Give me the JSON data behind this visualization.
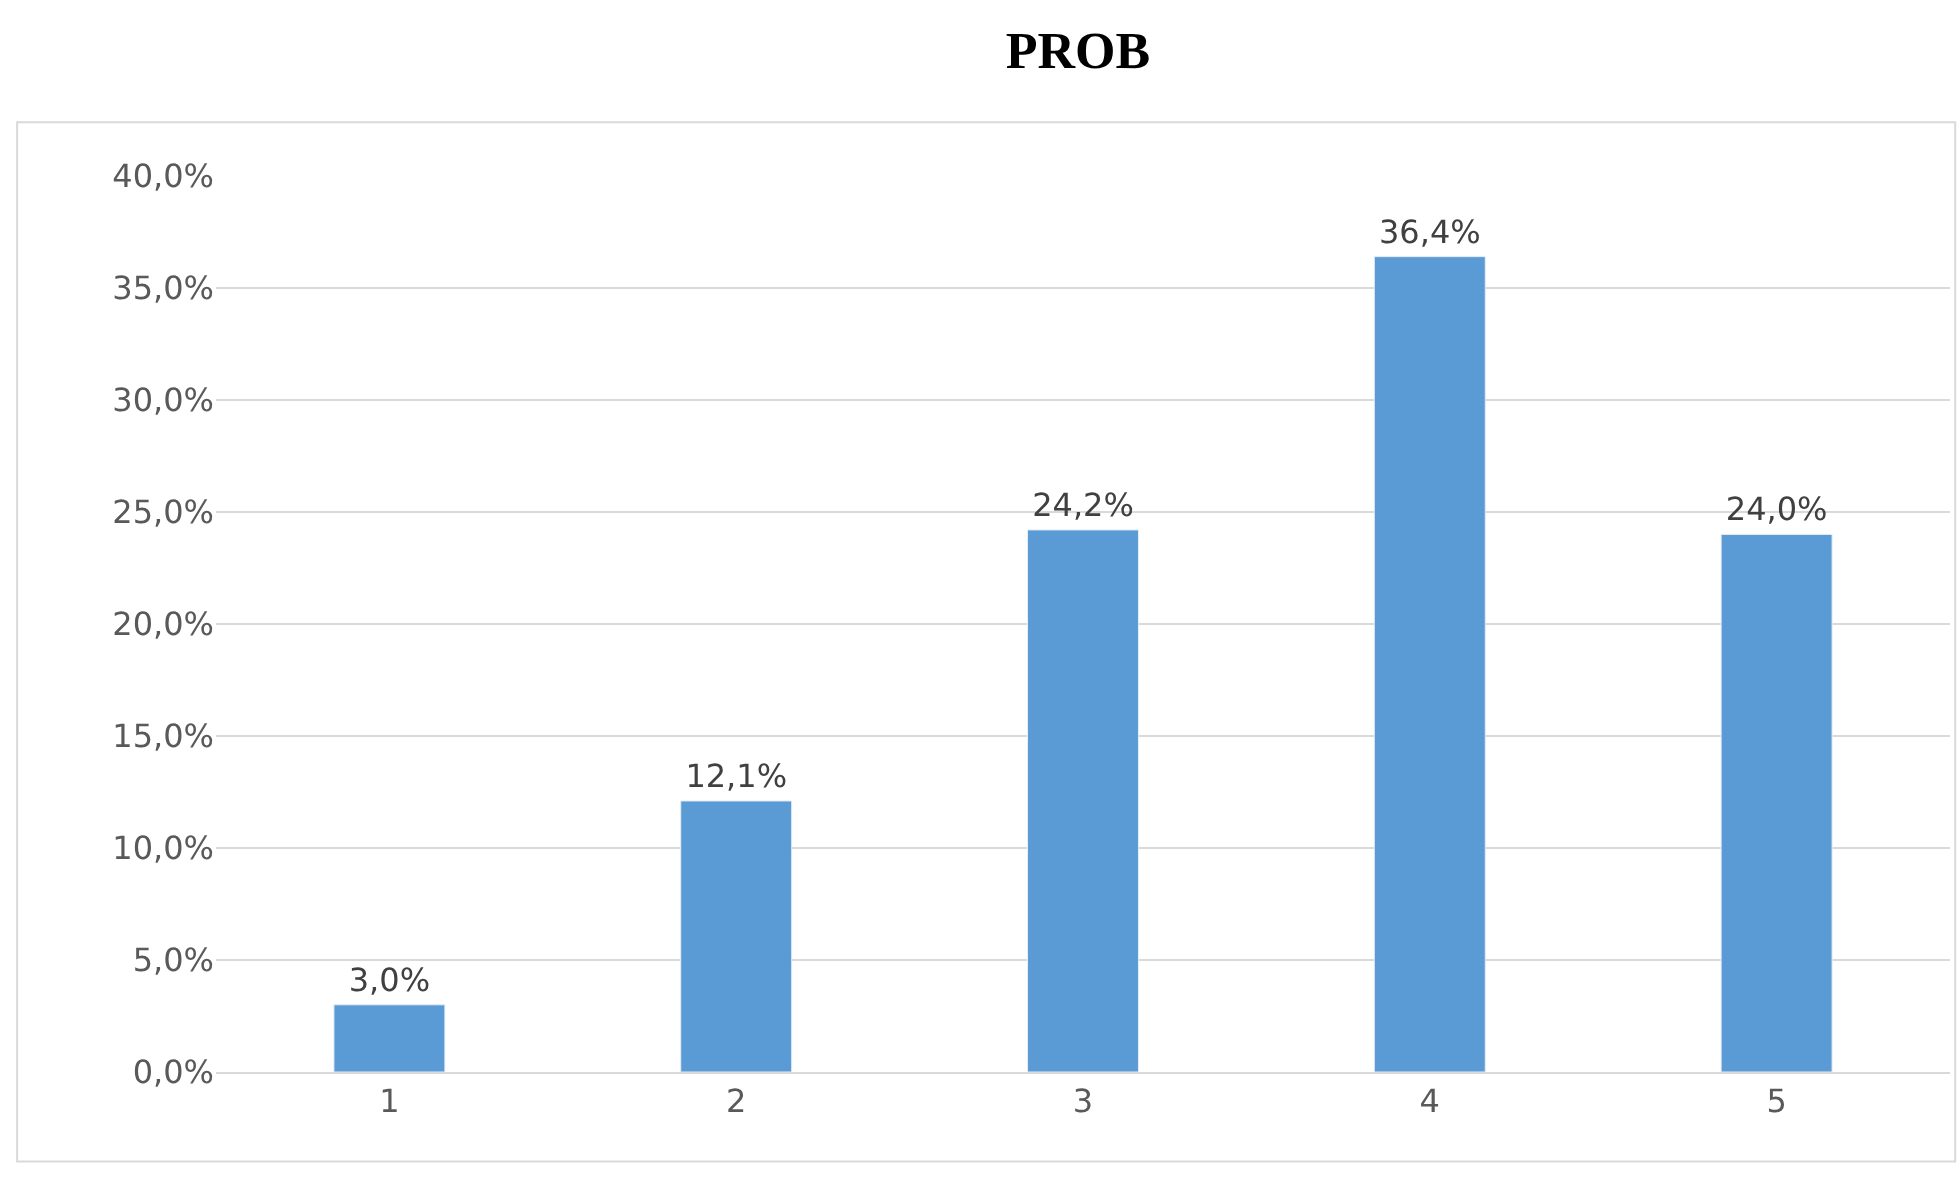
{
  "chart_data": {
    "type": "bar",
    "title": "PROB",
    "categories": [
      "1",
      "2",
      "3",
      "4",
      "5"
    ],
    "values": [
      3.0,
      12.1,
      24.2,
      36.4,
      24.0
    ],
    "value_labels": [
      "3,0%",
      "12,1%",
      "24,2%",
      "36,4%",
      "24,0%"
    ],
    "color": "#5b9bd5",
    "ylim": [
      0,
      40
    ],
    "yticks": [
      {
        "value": 0,
        "label": "0,0%"
      },
      {
        "value": 5,
        "label": "5,0%"
      },
      {
        "value": 10,
        "label": "10,0%"
      },
      {
        "value": 15,
        "label": "15,0%"
      },
      {
        "value": 20,
        "label": "20,0%"
      },
      {
        "value": 25,
        "label": "25,0%"
      },
      {
        "value": 30,
        "label": "30,0%"
      },
      {
        "value": 35,
        "label": "35,0%"
      },
      {
        "value": 40,
        "label": "40,0%"
      }
    ],
    "grid": "y"
  }
}
